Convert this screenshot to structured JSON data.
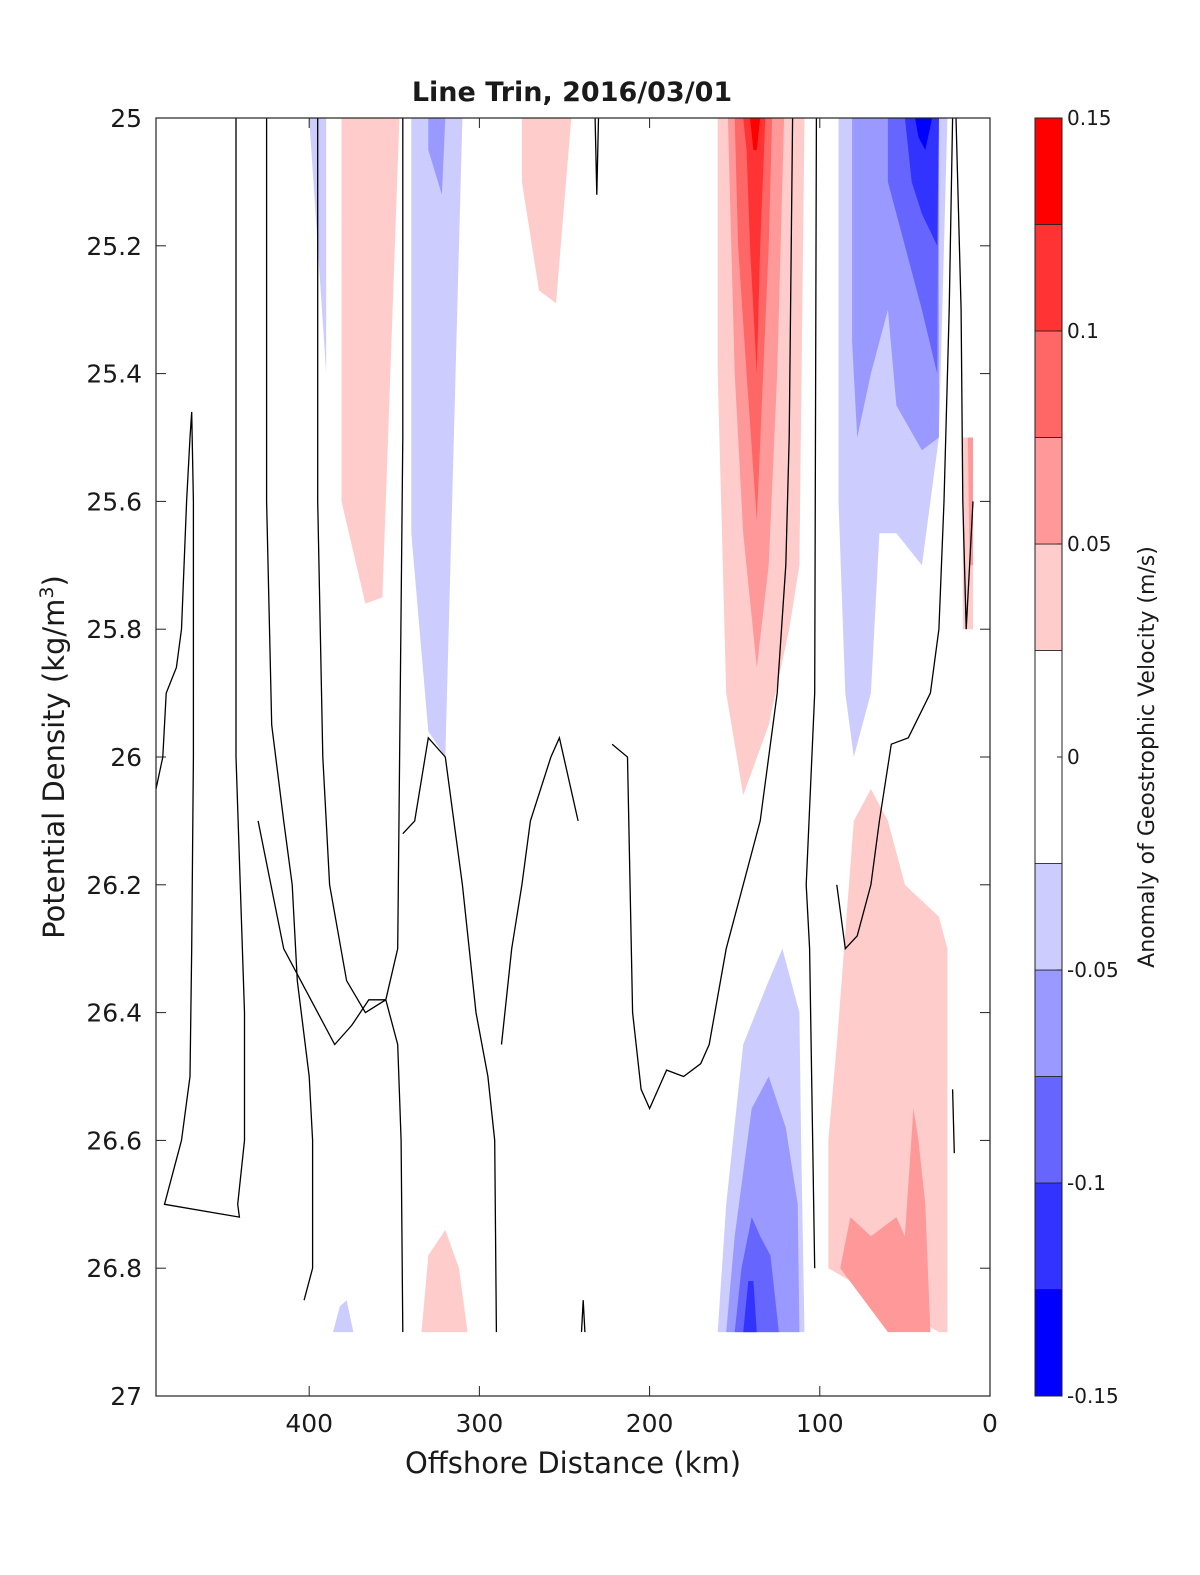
{
  "chart_data": {
    "type": "heatmap",
    "title": "Line Trin, 2016/03/01",
    "xlabel": "Offshore Distance (km)",
    "ylabel_main": "Potential Density (kg/m",
    "ylabel_sup": "3",
    "ylabel_close": ")",
    "xlim": [
      490,
      0
    ],
    "ylim": [
      25,
      27
    ],
    "y_reversed": true,
    "x_reversed": true,
    "grid": false,
    "x_ticks": [
      400,
      300,
      200,
      100,
      0
    ],
    "x_tick_labels": [
      "400",
      "300",
      "200",
      "100",
      "0"
    ],
    "y_ticks": [
      25,
      25.2,
      25.4,
      25.6,
      25.8,
      26,
      26.2,
      26.4,
      26.6,
      26.8,
      27
    ],
    "y_tick_labels": [
      "25",
      "25.2",
      "25.4",
      "25.6",
      "25.8",
      "26",
      "26.2",
      "26.4",
      "26.6",
      "26.8",
      "27"
    ],
    "colorbar": {
      "label": "Anomaly of Geostrophic Velocity (m/s)",
      "range": [
        -0.15,
        0.15
      ],
      "levels": [
        -0.15,
        -0.125,
        -0.1,
        -0.075,
        -0.05,
        -0.025,
        0.025,
        0.05,
        0.075,
        0.1,
        0.125,
        0.15
      ],
      "colors": [
        "#0000ff",
        "#3333ff",
        "#6666ff",
        "#9999ff",
        "#ccccff",
        "#ffffff",
        "#ffcccc",
        "#ff9999",
        "#ff6666",
        "#ff3333",
        "#ff0000"
      ],
      "ticks": [
        0.15,
        0.1,
        0.05,
        0,
        -0.05,
        -0.1,
        -0.15
      ],
      "tick_labels": [
        "0.15",
        "0.1",
        "0.05",
        "0",
        "-0.05",
        "-0.1",
        "-0.15"
      ]
    },
    "regions": [
      {
        "level": "-0.05",
        "color": "#ccccff",
        "points": [
          [
            400,
            25
          ],
          [
            390,
            25
          ],
          [
            390,
            25.4
          ]
        ]
      },
      {
        "level": "0.05",
        "color": "#ffcccc",
        "points": [
          [
            381,
            25
          ],
          [
            347,
            25
          ],
          [
            357,
            25.75
          ],
          [
            367,
            25.76
          ],
          [
            381,
            25.6
          ]
        ]
      },
      {
        "level": "-0.05",
        "color": "#ccccff",
        "points": [
          [
            340,
            25
          ],
          [
            310,
            25
          ],
          [
            320,
            26
          ],
          [
            330,
            25.96
          ],
          [
            340,
            25.65
          ]
        ]
      },
      {
        "level": "-0.075",
        "color": "#9999ff",
        "points": [
          [
            330,
            25
          ],
          [
            320,
            25
          ],
          [
            322,
            25.12
          ],
          [
            330,
            25.05
          ]
        ]
      },
      {
        "level": "0.05",
        "color": "#ffcccc",
        "points": [
          [
            275,
            25
          ],
          [
            246,
            25
          ],
          [
            255,
            25.29
          ],
          [
            265,
            25.27
          ],
          [
            275,
            25.1
          ]
        ]
      },
      {
        "level": "0.05",
        "color": "#ffcccc",
        "points": [
          [
            160,
            25
          ],
          [
            109,
            25
          ],
          [
            112,
            25.7
          ],
          [
            118,
            25.8
          ],
          [
            130,
            25.95
          ],
          [
            145,
            26.06
          ],
          [
            155,
            25.9
          ],
          [
            160,
            25.4
          ]
        ]
      },
      {
        "level": "0.075",
        "color": "#ff9999",
        "points": [
          [
            154,
            25
          ],
          [
            121,
            25
          ],
          [
            125,
            25.4
          ],
          [
            130,
            25.7
          ],
          [
            137,
            25.86
          ],
          [
            145,
            25.65
          ],
          [
            150,
            25.4
          ]
        ]
      },
      {
        "level": "0.1",
        "color": "#ff6666",
        "points": [
          [
            150,
            25
          ],
          [
            128,
            25
          ],
          [
            130,
            25.2
          ],
          [
            137,
            25.63
          ],
          [
            143,
            25.4
          ],
          [
            148,
            25.2
          ]
        ]
      },
      {
        "level": "0.125",
        "color": "#ff3333",
        "points": [
          [
            145,
            25
          ],
          [
            132,
            25
          ],
          [
            135,
            25.2
          ],
          [
            137,
            25.4
          ],
          [
            141,
            25.2
          ],
          [
            143,
            25.05
          ]
        ]
      },
      {
        "level": "0.15",
        "color": "#ff0000",
        "points": [
          [
            141,
            25
          ],
          [
            135,
            25
          ],
          [
            137,
            25.05
          ],
          [
            139,
            25.05
          ]
        ]
      },
      {
        "level": "-0.05",
        "color": "#ccccff",
        "points": [
          [
            89,
            25
          ],
          [
            25,
            25
          ],
          [
            30,
            25.5
          ],
          [
            40,
            25.7
          ],
          [
            55,
            25.65
          ],
          [
            65,
            25.65
          ],
          [
            70,
            25.9
          ],
          [
            80,
            26.0
          ],
          [
            85,
            25.9
          ],
          [
            89,
            25.6
          ]
        ]
      },
      {
        "level": "-0.075",
        "color": "#9999ff",
        "points": [
          [
            81,
            25
          ],
          [
            30,
            25
          ],
          [
            30,
            25.5
          ],
          [
            40,
            25.52
          ],
          [
            55,
            25.45
          ],
          [
            60,
            25.3
          ],
          [
            70,
            25.4
          ],
          [
            78,
            25.5
          ],
          [
            81,
            25.35
          ]
        ]
      },
      {
        "level": "-0.1",
        "color": "#6666ff",
        "points": [
          [
            60,
            25
          ],
          [
            30,
            25
          ],
          [
            31,
            25.4
          ],
          [
            40,
            25.3
          ],
          [
            50,
            25.2
          ],
          [
            60,
            25.1
          ]
        ]
      },
      {
        "level": "-0.125",
        "color": "#3333ff",
        "points": [
          [
            50,
            25
          ],
          [
            30,
            25
          ],
          [
            31,
            25.2
          ],
          [
            40,
            25.15
          ],
          [
            46,
            25.1
          ]
        ]
      },
      {
        "level": "-0.15",
        "color": "#0000ff",
        "points": [
          [
            44,
            25
          ],
          [
            34,
            25
          ],
          [
            38,
            25.05
          ],
          [
            42,
            25.03
          ]
        ]
      },
      {
        "level": "0.05",
        "color": "#ffcccc",
        "points": [
          [
            16,
            25.5
          ],
          [
            10,
            25.5
          ],
          [
            10,
            25.8
          ],
          [
            16,
            25.8
          ]
        ]
      },
      {
        "level": "0.075",
        "color": "#ff9999",
        "points": [
          [
            13,
            25.5
          ],
          [
            10,
            25.5
          ],
          [
            10,
            25.7
          ],
          [
            12,
            25.7
          ]
        ]
      },
      {
        "level": "-0.05",
        "color": "#ccccff",
        "points": [
          [
            160,
            26.9
          ],
          [
            109,
            26.9
          ],
          [
            111,
            26.6
          ],
          [
            112,
            26.4
          ],
          [
            122,
            26.3
          ],
          [
            130,
            26.35
          ],
          [
            145,
            26.45
          ],
          [
            155,
            26.7
          ]
        ]
      },
      {
        "level": "-0.075",
        "color": "#9999ff",
        "points": [
          [
            155,
            26.9
          ],
          [
            112,
            26.9
          ],
          [
            113,
            26.7
          ],
          [
            120,
            26.58
          ],
          [
            130,
            26.5
          ],
          [
            140,
            26.55
          ],
          [
            150,
            26.75
          ]
        ]
      },
      {
        "level": "-0.1",
        "color": "#6666ff",
        "points": [
          [
            150,
            26.9
          ],
          [
            124,
            26.9
          ],
          [
            129,
            26.78
          ],
          [
            135,
            26.75
          ],
          [
            140,
            26.72
          ],
          [
            146,
            26.8
          ]
        ]
      },
      {
        "level": "-0.125",
        "color": "#3333ff",
        "points": [
          [
            145,
            26.9
          ],
          [
            137,
            26.9
          ],
          [
            139,
            26.82
          ],
          [
            142,
            26.82
          ]
        ]
      },
      {
        "level": "0.05",
        "color": "#ffcccc",
        "points": [
          [
            95,
            26.8
          ],
          [
            30,
            26.9
          ],
          [
            25,
            26.9
          ],
          [
            25,
            26.3
          ],
          [
            30,
            26.25
          ],
          [
            50,
            26.2
          ],
          [
            60,
            26.1
          ],
          [
            70,
            26.05
          ],
          [
            80,
            26.1
          ],
          [
            90,
            26.45
          ],
          [
            95,
            26.6
          ]
        ]
      },
      {
        "level": "0.075",
        "color": "#ff9999",
        "points": [
          [
            88,
            26.8
          ],
          [
            60,
            26.9
          ],
          [
            35,
            26.9
          ],
          [
            38,
            26.7
          ],
          [
            42,
            26.6
          ],
          [
            45,
            26.55
          ],
          [
            50,
            26.75
          ],
          [
            55,
            26.72
          ],
          [
            70,
            26.75
          ],
          [
            82,
            26.72
          ]
        ]
      },
      {
        "level": "0.05",
        "color": "#ffcccc",
        "points": [
          [
            334,
            26.9
          ],
          [
            307,
            26.9
          ],
          [
            312,
            26.8
          ],
          [
            320,
            26.74
          ],
          [
            330,
            26.78
          ]
        ]
      },
      {
        "level": "-0.05",
        "color": "#ccccff",
        "points": [
          [
            386,
            26.9
          ],
          [
            374,
            26.9
          ],
          [
            378,
            26.85
          ],
          [
            382,
            26.86
          ]
        ]
      }
    ],
    "contours": [
      [
        [
          490,
          26.05
        ],
        [
          486,
          26.0
        ],
        [
          484,
          25.9
        ],
        [
          478,
          25.86
        ],
        [
          475,
          25.8
        ],
        [
          472,
          25.6
        ],
        [
          470,
          25.5
        ],
        [
          469,
          25.46
        ],
        [
          468,
          25.6
        ],
        [
          468,
          26.0
        ],
        [
          469,
          26.3
        ],
        [
          470,
          26.5
        ],
        [
          475,
          26.6
        ],
        [
          480,
          26.65
        ],
        [
          485,
          26.7
        ],
        [
          441,
          26.72
        ],
        [
          442,
          26.7
        ],
        [
          438,
          26.6
        ],
        [
          438,
          26.4
        ],
        [
          443,
          26.0
        ],
        [
          443,
          25.0
        ]
      ],
      [
        [
          425,
          25.0
        ],
        [
          425,
          25.6
        ],
        [
          422,
          25.95
        ],
        [
          415,
          26.1
        ],
        [
          410,
          26.2
        ],
        [
          407,
          26.35
        ],
        [
          400,
          26.5
        ],
        [
          398,
          26.6
        ],
        [
          398,
          26.8
        ],
        [
          403,
          26.85
        ]
      ],
      [
        [
          395,
          25.0
        ],
        [
          395,
          25.6
        ],
        [
          392,
          26.0
        ],
        [
          388,
          26.2
        ],
        [
          378,
          26.35
        ],
        [
          367,
          26.4
        ],
        [
          355,
          26.38
        ],
        [
          348,
          26.3
        ],
        [
          345,
          25.5
        ],
        [
          345,
          25.0
        ]
      ],
      [
        [
          345,
          26.9
        ],
        [
          346,
          26.6
        ],
        [
          348,
          26.45
        ],
        [
          355,
          26.38
        ],
        [
          365,
          26.38
        ],
        [
          375,
          26.42
        ],
        [
          385,
          26.45
        ],
        [
          395,
          26.4
        ],
        [
          415,
          26.3
        ],
        [
          430,
          26.1
        ]
      ],
      [
        [
          290,
          26.9
        ],
        [
          291,
          26.6
        ],
        [
          295,
          26.5
        ],
        [
          302,
          26.4
        ],
        [
          310,
          26.2
        ],
        [
          320,
          26.0
        ],
        [
          330,
          25.97
        ],
        [
          338,
          26.1
        ],
        [
          345,
          26.12
        ]
      ],
      [
        [
          242,
          26.1
        ],
        [
          253,
          25.97
        ],
        [
          258,
          26.0
        ],
        [
          270,
          26.1
        ],
        [
          275,
          26.2
        ],
        [
          281,
          26.3
        ],
        [
          287,
          26.45
        ]
      ],
      [
        [
          238,
          26.9
        ],
        [
          239,
          26.85
        ],
        [
          240,
          26.9
        ]
      ],
      [
        [
          230,
          25.0
        ],
        [
          231,
          25.12
        ],
        [
          232,
          25.0
        ]
      ],
      [
        [
          222,
          25.98
        ],
        [
          213,
          26.0
        ],
        [
          210,
          26.4
        ],
        [
          205,
          26.52
        ],
        [
          200,
          26.55
        ],
        [
          190,
          26.49
        ],
        [
          180,
          26.5
        ],
        [
          170,
          26.48
        ],
        [
          165,
          26.45
        ],
        [
          155,
          26.3
        ],
        [
          145,
          26.2
        ],
        [
          135,
          26.1
        ],
        [
          125,
          25.9
        ],
        [
          120,
          25.7
        ],
        [
          118,
          25.5
        ],
        [
          116,
          25.0
        ]
      ],
      [
        [
          103,
          26.8
        ],
        [
          106,
          26.3
        ],
        [
          108,
          26.2
        ],
        [
          103,
          25.9
        ],
        [
          102,
          25.0
        ]
      ],
      [
        [
          90,
          26.2
        ],
        [
          85,
          26.3
        ],
        [
          78,
          26.28
        ],
        [
          70,
          26.2
        ],
        [
          65,
          26.1
        ],
        [
          58,
          25.98
        ],
        [
          48,
          25.97
        ],
        [
          35,
          25.9
        ],
        [
          30,
          25.8
        ],
        [
          27,
          25.6
        ],
        [
          24,
          25.3
        ],
        [
          22,
          25.0
        ]
      ],
      [
        [
          20,
          25.0
        ],
        [
          17,
          25.3
        ],
        [
          16,
          25.6
        ],
        [
          14,
          25.8
        ],
        [
          12,
          25.7
        ],
        [
          10,
          25.6
        ]
      ],
      [
        [
          22,
          26.52
        ],
        [
          21,
          26.62
        ]
      ]
    ]
  }
}
